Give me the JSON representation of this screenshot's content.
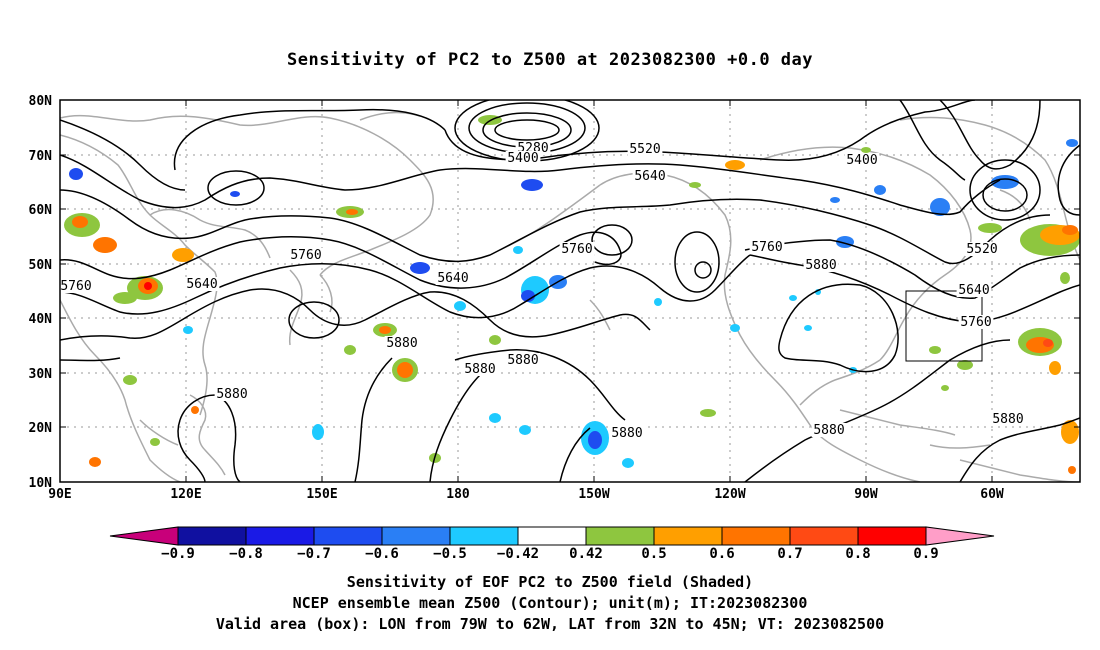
{
  "title": "Sensitivity of PC2 to Z500 at 2023082300 +0.0 day",
  "map": {
    "lat_labels": [
      "80N",
      "70N",
      "60N",
      "50N",
      "40N",
      "30N",
      "20N",
      "10N"
    ],
    "lon_labels": [
      "90E",
      "120E",
      "150E",
      "180",
      "150W",
      "120W",
      "90W",
      "60W"
    ],
    "contour_labels": [
      "5280",
      "5400",
      "5520",
      "5400",
      "5640",
      "5760",
      "5640",
      "5760",
      "5640",
      "5760",
      "5760",
      "5880",
      "5520",
      "5640",
      "5760",
      "5880",
      "5880",
      "5880",
      "5880",
      "5880",
      "5880",
      "5880"
    ],
    "box_icon": "valid-area-box"
  },
  "colorbar": {
    "colors": [
      "#c8007a",
      "#1010a0",
      "#1a1ae6",
      "#1e4cf0",
      "#2a7ff5",
      "#1ecaff",
      "#ffffff",
      "#8ec63f",
      "#ff9f00",
      "#ff7400",
      "#ff4a14",
      "#ff0000",
      "#ff9ec8"
    ],
    "labels": [
      "-0.9",
      "-0.8",
      "-0.7",
      "-0.6",
      "-0.5",
      "-0.42",
      "0.42",
      "0.5",
      "0.6",
      "0.7",
      "0.8",
      "0.9"
    ]
  },
  "footer": {
    "line1": "Sensitivity of EOF PC2 to Z500 field (Shaded)",
    "line2": "NCEP ensemble mean Z500 (Contour); unit(m); IT:2023082300",
    "line3": "Valid area (box): LON from 79W to 62W, LAT from 32N to 45N; VT: 2023082500"
  }
}
